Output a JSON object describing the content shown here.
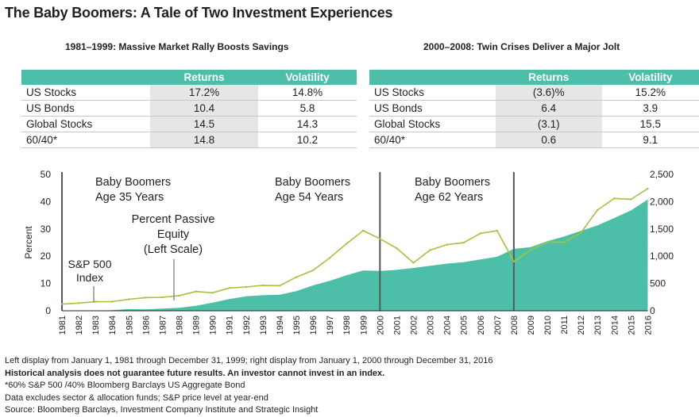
{
  "title": "The Baby Boomers: A Tale of Two Investment Experiences",
  "left_panel": {
    "title": "1981–1999: Massive Market Rally Boosts Savings",
    "headers": [
      "",
      "Returns",
      "Volatility"
    ],
    "rows": [
      {
        "label": "US Stocks",
        "returns": "17.2%",
        "volatility": "14.8%"
      },
      {
        "label": "US Bonds",
        "returns": "10.4",
        "volatility": "5.8"
      },
      {
        "label": "Global Stocks",
        "returns": "14.5",
        "volatility": "14.3"
      },
      {
        "label": "60/40*",
        "returns": "14.8",
        "volatility": "10.2"
      }
    ]
  },
  "right_panel": {
    "title": "2000–2008: Twin Crises Deliver a Major Jolt",
    "headers": [
      "",
      "Returns",
      "Volatility"
    ],
    "rows": [
      {
        "label": "US Stocks",
        "returns": "(3.6)%",
        "volatility": "15.2%"
      },
      {
        "label": "US Bonds",
        "returns": "6.4",
        "volatility": "3.9"
      },
      {
        "label": "Global Stocks",
        "returns": "(3.1)",
        "volatility": "15.5"
      },
      {
        "label": "60/40*",
        "returns": "0.6",
        "volatility": "9.1"
      }
    ]
  },
  "chart_data": {
    "type": "area",
    "x": [
      1981,
      1982,
      1983,
      1984,
      1985,
      1986,
      1987,
      1988,
      1989,
      1990,
      1991,
      1992,
      1993,
      1994,
      1995,
      1996,
      1997,
      1998,
      1999,
      2000,
      2001,
      2002,
      2003,
      2004,
      2005,
      2006,
      2007,
      2008,
      2009,
      2010,
      2011,
      2012,
      2013,
      2014,
      2015,
      2016
    ],
    "ylabel": "Percent",
    "ylim": [
      0,
      50
    ],
    "y_ticks": [
      "0",
      "10",
      "20",
      "30",
      "40",
      "50"
    ],
    "y2lim": [
      0,
      2500
    ],
    "y2_ticks": [
      "0",
      "500",
      "1,000",
      "1,500",
      "2,000",
      "2,500"
    ],
    "series": [
      {
        "name": "Percent Passive Equity (Left Scale)",
        "type": "area",
        "axis": "left",
        "color": "#4dbfa8",
        "values": [
          0,
          0,
          0,
          0.2,
          0.6,
          0.5,
          0.8,
          1.1,
          1.8,
          3,
          4.3,
          5.3,
          5.7,
          5.9,
          7.2,
          9.3,
          11,
          13,
          14.8,
          14.6,
          15,
          15.7,
          16.5,
          17.3,
          17.8,
          18.8,
          19.8,
          22.7,
          23.3,
          25.5,
          27.2,
          29.3,
          31.3,
          34,
          36.8,
          40.8
        ]
      },
      {
        "name": "S&P 500 Index",
        "type": "line",
        "axis": "right",
        "color": "#a6c23a",
        "values": [
          122,
          141,
          165,
          167,
          211,
          242,
          247,
          278,
          353,
          330,
          417,
          436,
          466,
          459,
          616,
          741,
          970,
          1229,
          1469,
          1320,
          1148,
          880,
          1112,
          1212,
          1248,
          1418,
          1468,
          903,
          1115,
          1258,
          1258,
          1426,
          1848,
          2059,
          2044,
          2239
        ]
      }
    ],
    "markers": [
      {
        "year": 1981,
        "label_lines": [
          "Baby Boomers",
          "Age 35 Years"
        ]
      },
      {
        "year": 2000,
        "label_lines": [
          "Baby Boomers",
          "Age 54 Years"
        ]
      },
      {
        "year": 2008,
        "label_lines": [
          "Baby Boomers",
          "Age 62 Years"
        ]
      }
    ],
    "annotations": [
      {
        "label_lines": [
          "S&P 500",
          "Index"
        ]
      },
      {
        "label_lines": [
          "Percent Passive",
          "Equity",
          "(Left Scale)"
        ]
      }
    ]
  },
  "notes": {
    "line1": "Left display from January 1, 1981 through December 31, 1999; right display from January 1, 2000 through December 31, 2016",
    "line2": "Historical analysis does not guarantee future results. An investor cannot invest in an index.",
    "line3": "*60% S&P 500 /40% Bloomberg Barclays US Aggregate Bond",
    "line4": "Data excludes sector & allocation funds; S&P price level at year-end",
    "line5": "Source: Bloomberg Barclays, Investment Company Institute and Strategic Insight"
  }
}
